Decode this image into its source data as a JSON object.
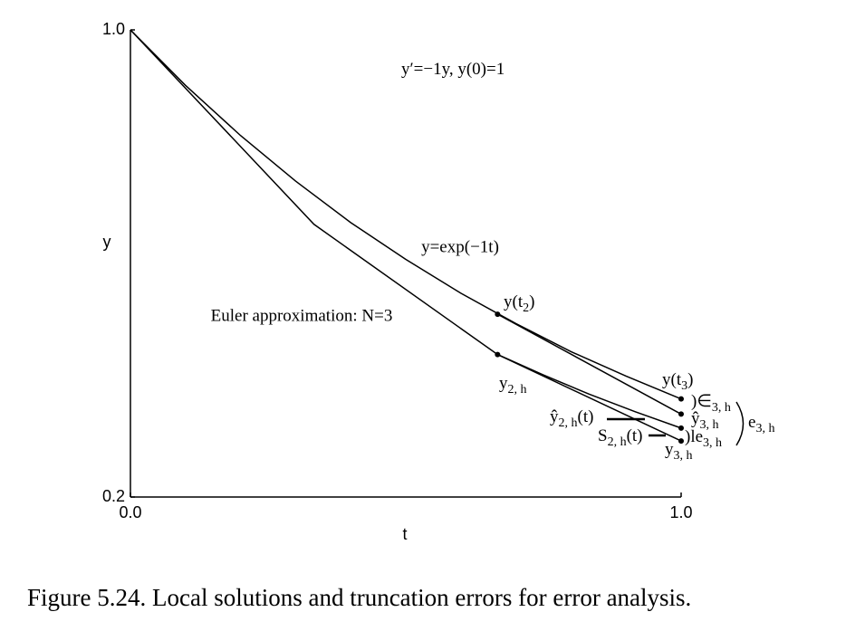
{
  "chart_data": {
    "type": "line",
    "caption": "Figure 5.24. Local solutions and truncation errors for error analysis.",
    "x_label": "t",
    "y_label": "y",
    "xlim": [
      0,
      1
    ],
    "ylim": [
      0.2,
      1.0
    ],
    "xticks": [
      {
        "value": 0,
        "label": "0.0"
      },
      {
        "value": 1,
        "label": "1.0"
      }
    ],
    "yticks": [
      {
        "value": 0.2,
        "label": "0.2"
      },
      {
        "value": 1,
        "label": "1.0"
      }
    ],
    "color": "#000000",
    "series": [
      {
        "name": "y=exp(−1t)",
        "x": [
          0,
          0.1,
          0.2,
          0.3,
          0.4,
          0.5,
          0.6,
          0.7,
          0.8,
          0.9,
          1
        ],
        "values": [
          1,
          0.905,
          0.819,
          0.741,
          0.67,
          0.607,
          0.549,
          0.497,
          0.449,
          0.407,
          0.368
        ]
      },
      {
        "name": "Euler approximation: N=3",
        "x": [
          0,
          0.3333,
          0.6667,
          1
        ],
        "values": [
          1,
          0.667,
          0.444,
          0.296
        ]
      },
      {
        "x": [
          0.6667,
          0.75,
          0.8333,
          0.9167,
          1
        ],
        "values": [
          0.444,
          0.409,
          0.376,
          0.346,
          0.318
        ]
      },
      {
        "x": [
          0.6667,
          1
        ],
        "values": [
          0.513,
          0.342
        ]
      }
    ],
    "points": {
      "x": [
        0.6667,
        1,
        1,
        1,
        1,
        0.6667
      ],
      "values": [
        0.513,
        0.368,
        0.342,
        0.318,
        0.296,
        0.444
      ]
    },
    "annotations": [
      {
        "parts": [
          {
            "text": "y′=−1y, y(0)=1"
          }
        ]
      },
      {
        "parts": [
          {
            "text": "y(t"
          },
          {
            "sub": "2"
          },
          {
            "text": ")"
          }
        ]
      },
      {
        "parts": [
          {
            "text": "y(t"
          },
          {
            "sub": "3"
          },
          {
            "text": ")"
          }
        ]
      },
      {
        "parts": [
          {
            "text": "y"
          },
          {
            "sub": "2, h"
          }
        ]
      },
      {
        "parts": [
          {
            "text": ")∈"
          },
          {
            "sub": "3, h"
          }
        ]
      },
      {
        "parts": [
          {
            "text": "ŷ"
          },
          {
            "sub": "3, h"
          }
        ]
      },
      {
        "parts": [
          {
            "text": "ŷ"
          },
          {
            "sub": "2, h"
          },
          {
            "text": "(t)"
          }
        ]
      },
      {
        "parts": [
          {
            "text": "S"
          },
          {
            "sub": "2, h"
          },
          {
            "text": "(t)"
          }
        ]
      },
      {
        "parts": [
          {
            "text": ")le"
          },
          {
            "sub": "3, h"
          }
        ]
      },
      {
        "parts": [
          {
            "text": "y"
          },
          {
            "sub": "3, h"
          }
        ]
      },
      {
        "parts": [
          {
            "text": "e"
          },
          {
            "sub": "3, h"
          }
        ]
      }
    ]
  }
}
